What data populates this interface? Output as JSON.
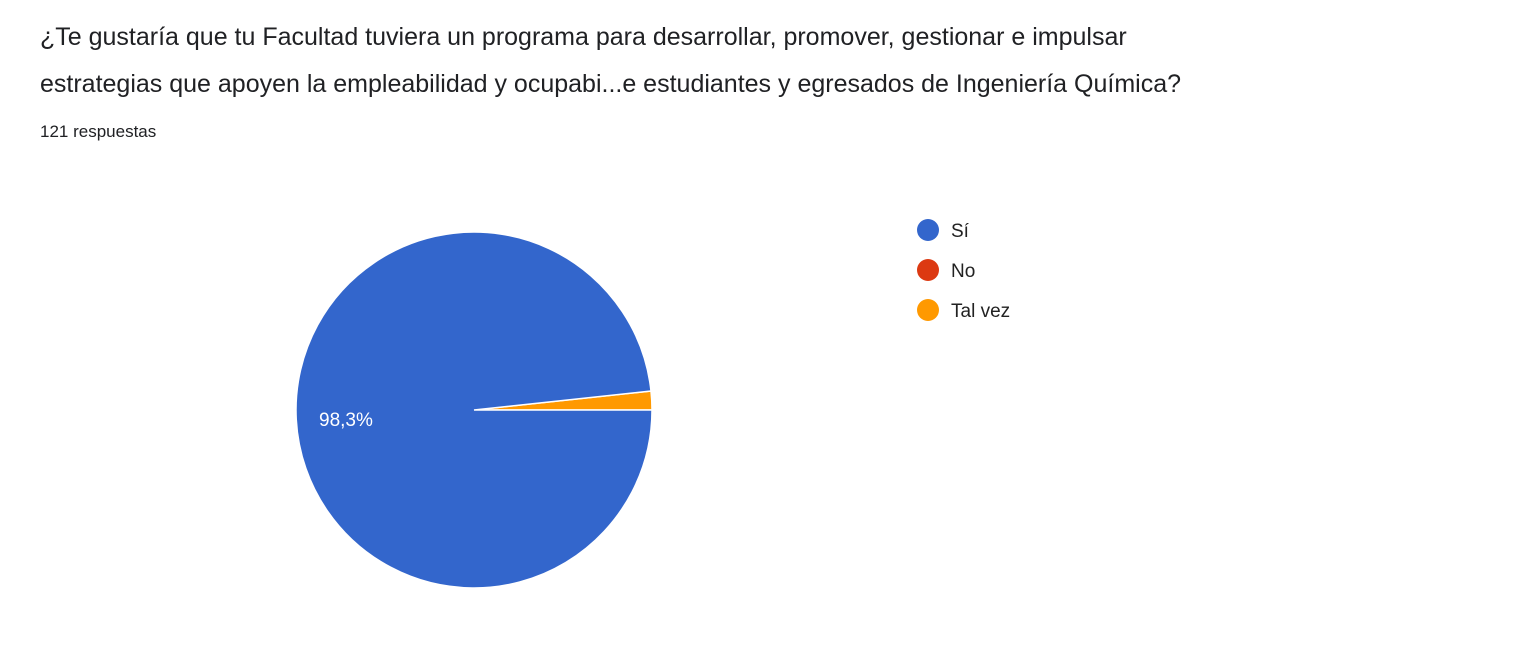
{
  "question": {
    "line1": "¿Te gustaría  que tu Facultad tuviera un programa para desarrollar, promover, gestionar e impulsar",
    "line2": "estrategias que apoyen la empleabilidad y ocupabi...e estudiantes y egresados de Ingeniería Química?"
  },
  "response_count": "121 respuestas",
  "chart_data": {
    "type": "pie",
    "title": "",
    "total_responses": 121,
    "slices": [
      {
        "label": "Sí",
        "value": 98.3,
        "color": "#3366cc",
        "data_label": "98,3%"
      },
      {
        "label": "No",
        "value": 0,
        "color": "#dc3912",
        "data_label": ""
      },
      {
        "label": "Tal vez",
        "value": 1.7,
        "color": "#ff9900",
        "data_label": ""
      }
    ],
    "legend_placement": "right"
  }
}
